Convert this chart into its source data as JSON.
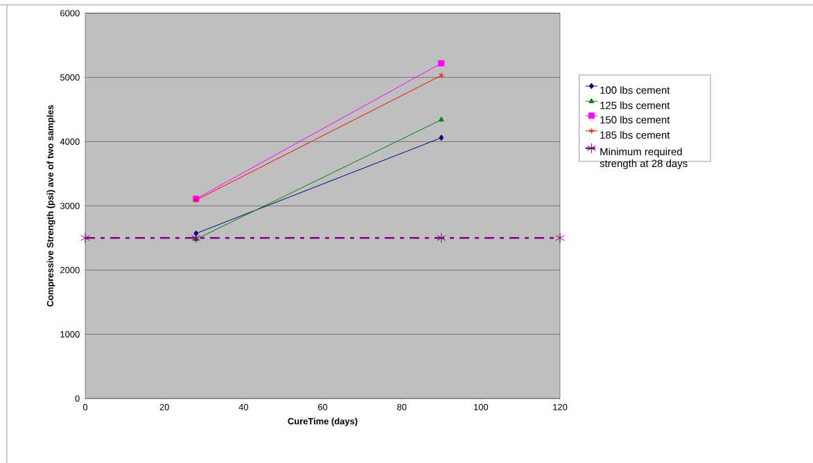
{
  "chart_data": {
    "type": "line",
    "xlabel": "CureTime (days)",
    "ylabel": "Compressive Strength (psi) ave of two samples",
    "xlim": [
      0,
      120
    ],
    "xticks": [
      0,
      20,
      40,
      60,
      80,
      100,
      120
    ],
    "ylim": [
      0,
      6000
    ],
    "yticks": [
      0,
      1000,
      2000,
      3000,
      4000,
      5000,
      6000
    ],
    "grid": "y",
    "legend": "right",
    "series": [
      {
        "name": "100 lbs cement",
        "color": "#000080",
        "marker": "diamond",
        "x": [
          28,
          90
        ],
        "values": [
          2570,
          4060
        ]
      },
      {
        "name": "125 lbs cement",
        "color": "#008000",
        "marker": "triangle",
        "x": [
          28,
          90
        ],
        "values": [
          2480,
          4340
        ]
      },
      {
        "name": "150 lbs cement",
        "color": "#ff00ff",
        "marker": "square",
        "x": [
          28,
          90
        ],
        "values": [
          3110,
          5220
        ]
      },
      {
        "name": "185 lbs cement",
        "color": "#ff0000",
        "marker": "cross",
        "x": [
          28,
          90
        ],
        "values": [
          3090,
          5030
        ]
      },
      {
        "name": "Minimum required strength at 28 days",
        "color": "#800080",
        "marker": "cross",
        "line_style": "dashed",
        "x": [
          0,
          28,
          90,
          120
        ],
        "values": [
          2500,
          2500,
          2500,
          2500
        ]
      }
    ]
  }
}
